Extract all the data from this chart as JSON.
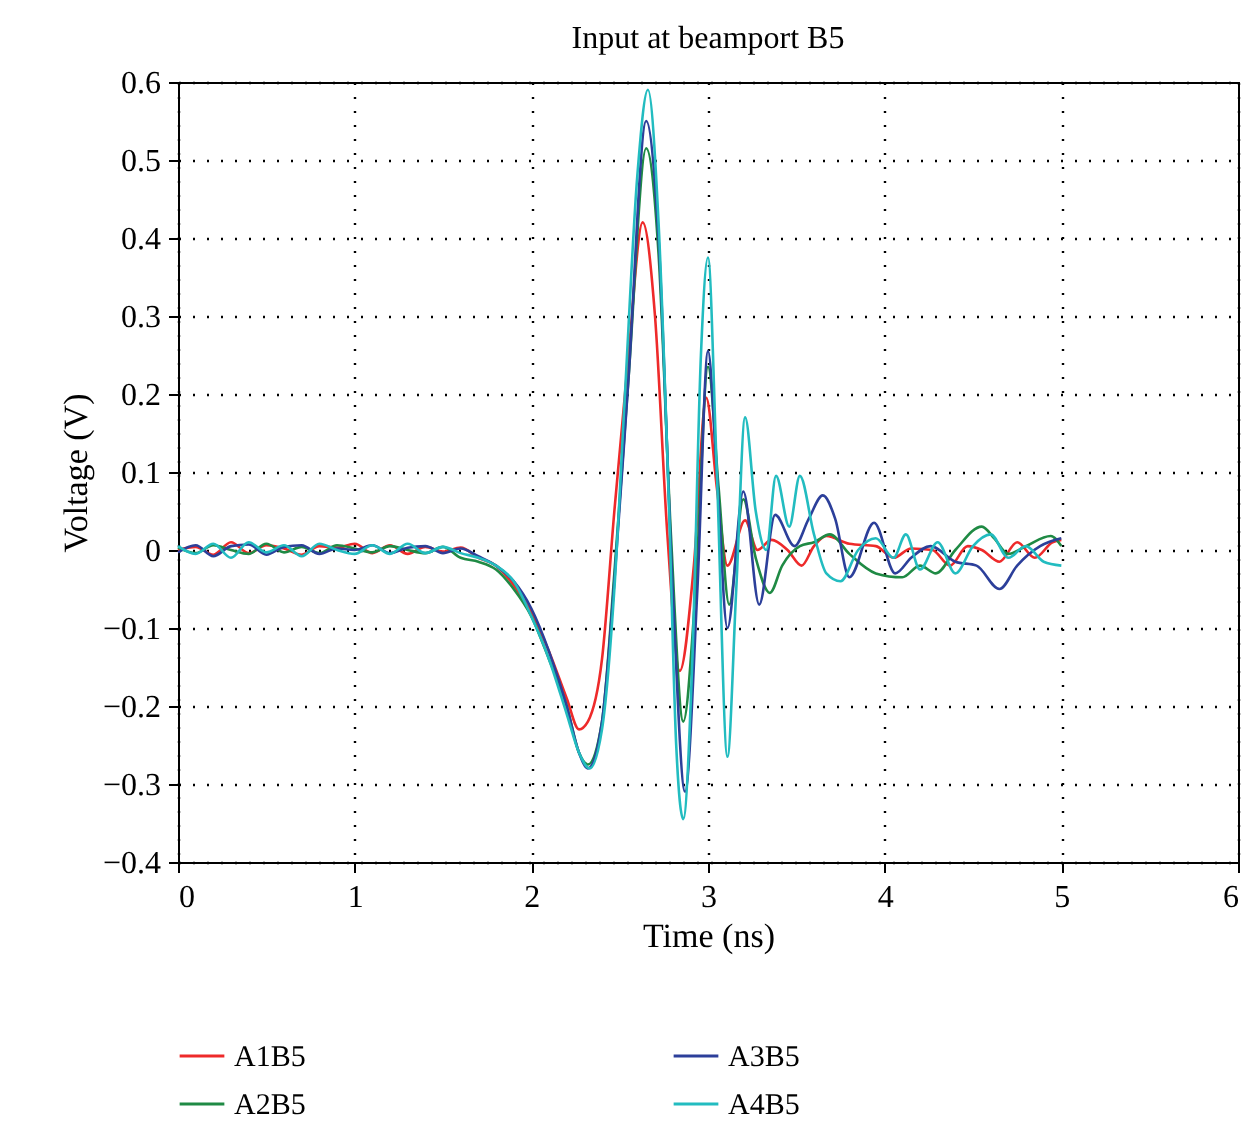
{
  "chart_data": {
    "type": "line",
    "title": "Input at beamport B5",
    "xlabel": "Time (ns)",
    "ylabel": "Voltage (V)",
    "xlim": [
      0,
      6
    ],
    "xticks": [
      0,
      1,
      2,
      3,
      4,
      5,
      6
    ],
    "ylim": [
      -0.4,
      0.6
    ],
    "yticks": [
      -0.4,
      -0.3,
      -0.2,
      -0.1,
      0,
      0.1,
      0.2,
      0.3,
      0.4,
      0.5,
      0.6
    ],
    "grid": true,
    "legend": "bottom",
    "line_style": "solid",
    "marker": "none",
    "series": [
      {
        "name": "A1B5",
        "color": "#ee2a2a",
        "x": [
          0,
          0.1,
          0.2,
          0.3,
          0.4,
          0.5,
          0.6,
          0.7,
          0.8,
          0.9,
          1.0,
          1.1,
          1.2,
          1.3,
          1.4,
          1.5,
          1.6,
          1.7,
          1.8,
          1.9,
          2.0,
          2.1,
          2.2,
          2.27,
          2.32,
          2.4,
          2.47,
          2.55,
          2.63,
          2.7,
          2.77,
          2.84,
          2.92,
          2.99,
          3.05,
          3.11,
          3.21,
          3.28,
          3.36,
          3.45,
          3.53,
          3.6,
          3.67,
          3.8,
          3.95,
          4.05,
          4.15,
          4.27,
          4.37,
          4.47,
          4.55,
          4.65,
          4.75,
          4.85,
          4.95,
          5.0
        ],
        "values": [
          0,
          0.004,
          -0.006,
          0.01,
          -0.004,
          0.006,
          0.002,
          -0.006,
          0.005,
          0.003,
          0.008,
          -0.004,
          0.006,
          -0.005,
          0.004,
          -0.002,
          0.003,
          -0.01,
          -0.02,
          -0.045,
          -0.08,
          -0.13,
          -0.19,
          -0.23,
          -0.22,
          -0.14,
          0.05,
          0.25,
          0.42,
          0.3,
          0.02,
          -0.155,
          -0.02,
          0.195,
          0.08,
          -0.02,
          0.038,
          0,
          0.013,
          0,
          -0.02,
          0.005,
          0.018,
          0.008,
          0.005,
          -0.01,
          0.002,
          0,
          -0.02,
          0.005,
          0,
          -0.015,
          0.01,
          -0.01,
          0.01,
          0.013
        ]
      },
      {
        "name": "A2B5",
        "color": "#1f8a44",
        "x": [
          0,
          0.1,
          0.2,
          0.3,
          0.4,
          0.5,
          0.6,
          0.7,
          0.8,
          0.9,
          1.0,
          1.1,
          1.2,
          1.3,
          1.4,
          1.5,
          1.6,
          1.7,
          1.8,
          1.9,
          2.0,
          2.1,
          2.2,
          2.27,
          2.32,
          2.4,
          2.47,
          2.55,
          2.65,
          2.72,
          2.79,
          2.86,
          2.93,
          3.0,
          3.06,
          3.12,
          3.2,
          3.27,
          3.35,
          3.42,
          3.52,
          3.6,
          3.69,
          3.8,
          3.95,
          4.1,
          4.2,
          4.29,
          4.4,
          4.55,
          4.62,
          4.7,
          4.8,
          4.94,
          5.0
        ],
        "values": [
          0.003,
          -0.004,
          0.006,
          0,
          -0.005,
          0.008,
          -0.003,
          0.004,
          -0.004,
          0.006,
          0.002,
          -0.003,
          0.005,
          0,
          -0.004,
          0.004,
          -0.01,
          -0.015,
          -0.025,
          -0.05,
          -0.085,
          -0.14,
          -0.2,
          -0.26,
          -0.275,
          -0.22,
          -0.03,
          0.22,
          0.515,
          0.38,
          0.02,
          -0.22,
          -0.05,
          0.235,
          0.08,
          -0.07,
          0.065,
          -0.01,
          -0.055,
          -0.02,
          0.005,
          0.01,
          0.02,
          -0.005,
          -0.03,
          -0.035,
          -0.02,
          -0.03,
          0,
          0.03,
          0.015,
          -0.005,
          0.005,
          0.018,
          0.005
        ]
      },
      {
        "name": "A3B5",
        "color": "#2c3f9a",
        "x": [
          0,
          0.1,
          0.2,
          0.3,
          0.4,
          0.5,
          0.6,
          0.7,
          0.8,
          0.9,
          1.0,
          1.1,
          1.2,
          1.3,
          1.4,
          1.5,
          1.6,
          1.7,
          1.8,
          1.9,
          2.0,
          2.1,
          2.2,
          2.27,
          2.32,
          2.4,
          2.47,
          2.55,
          2.65,
          2.72,
          2.8,
          2.87,
          2.94,
          3.0,
          3.05,
          3.11,
          3.2,
          3.29,
          3.38,
          3.49,
          3.57,
          3.65,
          3.72,
          3.8,
          3.94,
          4.06,
          4.15,
          4.26,
          4.4,
          4.52,
          4.65,
          4.75,
          4.88,
          5.0
        ],
        "values": [
          -0.003,
          0.006,
          -0.008,
          0.005,
          0.007,
          -0.006,
          0.004,
          0.006,
          -0.005,
          0.002,
          0,
          0.006,
          -0.004,
          0.003,
          0.005,
          -0.004,
          0.002,
          -0.008,
          -0.02,
          -0.04,
          -0.075,
          -0.13,
          -0.2,
          -0.26,
          -0.28,
          -0.22,
          -0.04,
          0.22,
          0.55,
          0.4,
          -0.05,
          -0.31,
          -0.05,
          0.255,
          0.1,
          -0.1,
          0.075,
          -0.07,
          0.045,
          0.005,
          0.04,
          0.07,
          0.04,
          -0.035,
          0.035,
          -0.03,
          -0.01,
          0.005,
          -0.015,
          -0.02,
          -0.05,
          -0.02,
          0.005,
          0.015
        ]
      },
      {
        "name": "A4B5",
        "color": "#22bcc0",
        "x": [
          0,
          0.1,
          0.2,
          0.3,
          0.4,
          0.5,
          0.6,
          0.7,
          0.8,
          0.9,
          1.0,
          1.1,
          1.2,
          1.3,
          1.4,
          1.5,
          1.6,
          1.7,
          1.8,
          1.9,
          2.0,
          2.1,
          2.2,
          2.27,
          2.33,
          2.4,
          2.47,
          2.53,
          2.6,
          2.66,
          2.72,
          2.78,
          2.82,
          2.86,
          2.91,
          2.96,
          3.0,
          3.05,
          3.11,
          3.16,
          3.21,
          3.27,
          3.33,
          3.385,
          3.46,
          3.52,
          3.6,
          3.67,
          3.75,
          3.85,
          3.95,
          4.05,
          4.12,
          4.2,
          4.3,
          4.4,
          4.5,
          4.6,
          4.7,
          4.8,
          4.9,
          5.0
        ],
        "values": [
          0.005,
          -0.005,
          0.008,
          -0.01,
          0.01,
          -0.003,
          0.006,
          -0.008,
          0.008,
          0,
          -0.005,
          0.006,
          -0.005,
          0.008,
          -0.004,
          0.004,
          -0.004,
          -0.01,
          -0.02,
          -0.04,
          -0.085,
          -0.14,
          -0.21,
          -0.26,
          -0.28,
          -0.23,
          -0.05,
          0.2,
          0.48,
          0.59,
          0.42,
          0.05,
          -0.25,
          -0.345,
          -0.15,
          0.25,
          0.375,
          0.1,
          -0.265,
          -0.05,
          0.17,
          0.05,
          0,
          0.095,
          0.03,
          0.095,
          0.02,
          -0.03,
          -0.04,
          0,
          0.015,
          -0.01,
          0.02,
          -0.025,
          0.01,
          -0.03,
          0.005,
          0.02,
          -0.01,
          0.005,
          -0.015,
          -0.02
        ]
      }
    ]
  }
}
